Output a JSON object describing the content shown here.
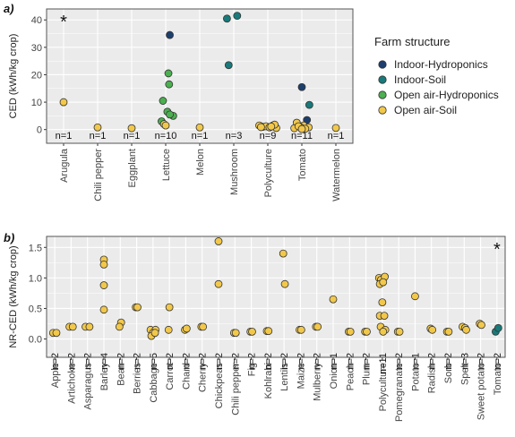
{
  "colors": {
    "Indoor-Hydroponics": "#1d3f6e",
    "Indoor-Soil": "#187a7a",
    "Open air-Hydroponics": "#4caf50",
    "Open air-Soil": "#f2c84b",
    "panel_bg": "#ebebeb",
    "grid": "#ffffff",
    "point_stroke": "#333333"
  },
  "legend": {
    "title": "Farm structure",
    "items": [
      "Indoor-Hydroponics",
      "Indoor-Soil",
      "Open air-Hydroponics",
      "Open air-Soil"
    ]
  },
  "chart_data": [
    {
      "panel_label": "a)",
      "type": "scatter",
      "ylabel": "CED (kWh/kg crop)",
      "ylim": [
        -5,
        44
      ],
      "yticks": [
        0,
        10,
        20,
        30,
        40
      ],
      "annotation": "*",
      "annotation_category": "Arugula",
      "categories": [
        "Arugula",
        "Chili pepper",
        "Eggplant",
        "Lettuce",
        "Melon",
        "Mushroom",
        "Polyculture",
        "Tomato",
        "Watermelon"
      ],
      "n_labels": [
        "n=1",
        "n=1",
        "n=1",
        "n=10",
        "n=1",
        "n=3",
        "n=9",
        "n=11",
        "n=1"
      ],
      "points": [
        {
          "category": "Arugula",
          "structure": "Open air-Soil",
          "y": 10.0,
          "jitter": 0.0
        },
        {
          "category": "Chili pepper",
          "structure": "Open air-Soil",
          "y": 0.8,
          "jitter": 0.0
        },
        {
          "category": "Eggplant",
          "structure": "Open air-Soil",
          "y": 0.5,
          "jitter": 0.0
        },
        {
          "category": "Lettuce",
          "structure": "Indoor-Hydroponics",
          "y": 34.5,
          "jitter": 0.12
        },
        {
          "category": "Lettuce",
          "structure": "Open air-Hydroponics",
          "y": 20.5,
          "jitter": 0.08
        },
        {
          "category": "Lettuce",
          "structure": "Open air-Hydroponics",
          "y": 16.5,
          "jitter": 0.1
        },
        {
          "category": "Lettuce",
          "structure": "Open air-Hydroponics",
          "y": 10.5,
          "jitter": -0.08
        },
        {
          "category": "Lettuce",
          "structure": "Open air-Hydroponics",
          "y": 6.5,
          "jitter": 0.05
        },
        {
          "category": "Lettuce",
          "structure": "Open air-Hydroponics",
          "y": 5.0,
          "jitter": 0.22
        },
        {
          "category": "Lettuce",
          "structure": "Open air-Hydroponics",
          "y": 5.5,
          "jitter": 0.12
        },
        {
          "category": "Lettuce",
          "structure": "Open air-Hydroponics",
          "y": 3.0,
          "jitter": -0.12
        },
        {
          "category": "Lettuce",
          "structure": "Open air-Soil",
          "y": 2.0,
          "jitter": -0.05
        },
        {
          "category": "Lettuce",
          "structure": "Open air-Soil",
          "y": 1.5,
          "jitter": 0.0
        },
        {
          "category": "Melon",
          "structure": "Open air-Soil",
          "y": 0.8,
          "jitter": 0.0
        },
        {
          "category": "Mushroom",
          "structure": "Indoor-Soil",
          "y": 40.5,
          "jitter": -0.2
        },
        {
          "category": "Mushroom",
          "structure": "Indoor-Soil",
          "y": 41.5,
          "jitter": 0.1
        },
        {
          "category": "Mushroom",
          "structure": "Indoor-Soil",
          "y": 23.5,
          "jitter": -0.15
        },
        {
          "category": "Polyculture",
          "structure": "Open air-Soil",
          "y": 1.5,
          "jitter": -0.25
        },
        {
          "category": "Polyculture",
          "structure": "Open air-Soil",
          "y": 1.0,
          "jitter": -0.15
        },
        {
          "category": "Polyculture",
          "structure": "Open air-Soil",
          "y": 1.2,
          "jitter": -0.05
        },
        {
          "category": "Polyculture",
          "structure": "Open air-Soil",
          "y": 0.8,
          "jitter": 0.05
        },
        {
          "category": "Polyculture",
          "structure": "Open air-Soil",
          "y": 1.5,
          "jitter": 0.15
        },
        {
          "category": "Polyculture",
          "structure": "Open air-Soil",
          "y": 0.6,
          "jitter": 0.25
        },
        {
          "category": "Polyculture",
          "structure": "Open air-Soil",
          "y": 1.8,
          "jitter": 0.2
        },
        {
          "category": "Polyculture",
          "structure": "Open air-Soil",
          "y": 0.9,
          "jitter": -0.2
        },
        {
          "category": "Polyculture",
          "structure": "Open air-Soil",
          "y": 1.1,
          "jitter": 0.1
        },
        {
          "category": "Tomato",
          "structure": "Indoor-Hydroponics",
          "y": 15.5,
          "jitter": 0.0
        },
        {
          "category": "Tomato",
          "structure": "Indoor-Soil",
          "y": 9.0,
          "jitter": 0.22
        },
        {
          "category": "Tomato",
          "structure": "Indoor-Hydroponics",
          "y": 3.5,
          "jitter": 0.15
        },
        {
          "category": "Tomato",
          "structure": "Open air-Soil",
          "y": 2.5,
          "jitter": -0.15
        },
        {
          "category": "Tomato",
          "structure": "Open air-Soil",
          "y": 1.5,
          "jitter": 0.05
        },
        {
          "category": "Tomato",
          "structure": "Open air-Soil",
          "y": 1.0,
          "jitter": -0.05
        },
        {
          "category": "Tomato",
          "structure": "Open air-Soil",
          "y": 0.8,
          "jitter": 0.2
        },
        {
          "category": "Tomato",
          "structure": "Open air-Soil",
          "y": 0.5,
          "jitter": -0.22
        },
        {
          "category": "Tomato",
          "structure": "Open air-Soil",
          "y": 0.3,
          "jitter": 0.1
        },
        {
          "category": "Tomato",
          "structure": "Open air-Soil",
          "y": 1.2,
          "jitter": -0.1
        },
        {
          "category": "Tomato",
          "structure": "Open air-Soil",
          "y": 0.2,
          "jitter": 0.0
        },
        {
          "category": "Watermelon",
          "structure": "Open air-Soil",
          "y": 0.6,
          "jitter": 0.0
        }
      ]
    },
    {
      "panel_label": "b)",
      "type": "scatter",
      "ylabel": "NR-CED (kWh/kg crop)",
      "ylim": [
        -0.3,
        1.68
      ],
      "yticks": [
        0.0,
        0.5,
        1.0,
        1.5
      ],
      "yticklabels": [
        "0.0",
        "0.5",
        "1.0",
        "1.5"
      ],
      "annotation": "*",
      "annotation_category": "Tomato",
      "categories": [
        "Apple",
        "Artichoke",
        "Asparagus",
        "Barley",
        "Bean",
        "Berries",
        "Cabbage",
        "Carrot",
        "Chard",
        "Cherry",
        "Chickpeas",
        "Chili pepper",
        "Fig",
        "Kohlrabi",
        "Lentils",
        "Maize",
        "Mulberry",
        "Onion",
        "Peach",
        "Plum",
        "Polyculture",
        "Pomegranate",
        "Potato",
        "Radish",
        "Sorb",
        "Spelt",
        "Sweet potato",
        "Tomato"
      ],
      "n_labels": [
        "n=2",
        "n=2",
        "n=2",
        "n=4",
        "n=2",
        "n=2",
        "n=5",
        "n=2",
        "n=2",
        "n=2",
        "n=2",
        "n=2",
        "n=2",
        "n=2",
        "n=2",
        "n=2",
        "n=2",
        "n=1",
        "n=2",
        "n=2",
        "n=11",
        "n=2",
        "n=1",
        "n=2",
        "n=2",
        "n=3",
        "n=2",
        "n=2"
      ],
      "points": [
        {
          "category": "Apple",
          "structure": "Open air-Soil",
          "y": 0.1,
          "jitter": -0.1
        },
        {
          "category": "Apple",
          "structure": "Open air-Soil",
          "y": 0.1,
          "jitter": 0.1
        },
        {
          "category": "Artichoke",
          "structure": "Open air-Soil",
          "y": 0.2,
          "jitter": -0.1
        },
        {
          "category": "Artichoke",
          "structure": "Open air-Soil",
          "y": 0.2,
          "jitter": 0.1
        },
        {
          "category": "Asparagus",
          "structure": "Open air-Soil",
          "y": 0.2,
          "jitter": -0.12
        },
        {
          "category": "Asparagus",
          "structure": "Open air-Soil",
          "y": 0.2,
          "jitter": 0.12
        },
        {
          "category": "Barley",
          "structure": "Open air-Soil",
          "y": 1.3,
          "jitter": 0.0
        },
        {
          "category": "Barley",
          "structure": "Open air-Soil",
          "y": 1.22,
          "jitter": 0.0
        },
        {
          "category": "Barley",
          "structure": "Open air-Soil",
          "y": 0.88,
          "jitter": 0.0
        },
        {
          "category": "Barley",
          "structure": "Open air-Soil",
          "y": 0.48,
          "jitter": 0.0
        },
        {
          "category": "Bean",
          "structure": "Open air-Soil",
          "y": 0.27,
          "jitter": 0.05
        },
        {
          "category": "Bean",
          "structure": "Open air-Soil",
          "y": 0.2,
          "jitter": -0.05
        },
        {
          "category": "Berries",
          "structure": "Open air-Soil",
          "y": 0.52,
          "jitter": -0.05
        },
        {
          "category": "Berries",
          "structure": "Open air-Soil",
          "y": 0.52,
          "jitter": 0.05
        },
        {
          "category": "Cabbage",
          "structure": "Open air-Soil",
          "y": 0.15,
          "jitter": -0.15
        },
        {
          "category": "Cabbage",
          "structure": "Open air-Soil",
          "y": 0.15,
          "jitter": 0.15
        },
        {
          "category": "Cabbage",
          "structure": "Open air-Soil",
          "y": 0.1,
          "jitter": 0.0
        },
        {
          "category": "Cabbage",
          "structure": "Open air-Soil",
          "y": 0.05,
          "jitter": -0.1
        },
        {
          "category": "Cabbage",
          "structure": "Open air-Soil",
          "y": 0.1,
          "jitter": 0.12
        },
        {
          "category": "Carrot",
          "structure": "Open air-Soil",
          "y": 0.52,
          "jitter": 0.0
        },
        {
          "category": "Carrot",
          "structure": "Open air-Soil",
          "y": 0.15,
          "jitter": -0.05
        },
        {
          "category": "Chard",
          "structure": "Open air-Soil",
          "y": 0.15,
          "jitter": -0.05
        },
        {
          "category": "Chard",
          "structure": "Open air-Soil",
          "y": 0.17,
          "jitter": 0.05
        },
        {
          "category": "Cherry",
          "structure": "Open air-Soil",
          "y": 0.2,
          "jitter": -0.05
        },
        {
          "category": "Cherry",
          "structure": "Open air-Soil",
          "y": 0.2,
          "jitter": 0.05
        },
        {
          "category": "Chickpeas",
          "structure": "Open air-Soil",
          "y": 1.6,
          "jitter": 0.0
        },
        {
          "category": "Chickpeas",
          "structure": "Open air-Soil",
          "y": 0.9,
          "jitter": 0.0
        },
        {
          "category": "Chili pepper",
          "structure": "Open air-Soil",
          "y": 0.1,
          "jitter": -0.05
        },
        {
          "category": "Chili pepper",
          "structure": "Open air-Soil",
          "y": 0.1,
          "jitter": 0.05
        },
        {
          "category": "Fig",
          "structure": "Open air-Soil",
          "y": 0.12,
          "jitter": -0.05
        },
        {
          "category": "Fig",
          "structure": "Open air-Soil",
          "y": 0.12,
          "jitter": 0.05
        },
        {
          "category": "Kohlrabi",
          "structure": "Open air-Soil",
          "y": 0.13,
          "jitter": -0.05
        },
        {
          "category": "Kohlrabi",
          "structure": "Open air-Soil",
          "y": 0.13,
          "jitter": 0.05
        },
        {
          "category": "Lentils",
          "structure": "Open air-Soil",
          "y": 1.4,
          "jitter": -0.05
        },
        {
          "category": "Lentils",
          "structure": "Open air-Soil",
          "y": 0.9,
          "jitter": 0.05
        },
        {
          "category": "Maize",
          "structure": "Open air-Soil",
          "y": 0.15,
          "jitter": -0.05
        },
        {
          "category": "Maize",
          "structure": "Open air-Soil",
          "y": 0.15,
          "jitter": 0.05
        },
        {
          "category": "Mulberry",
          "structure": "Open air-Soil",
          "y": 0.2,
          "jitter": -0.05
        },
        {
          "category": "Mulberry",
          "structure": "Open air-Soil",
          "y": 0.2,
          "jitter": 0.05
        },
        {
          "category": "Onion",
          "structure": "Open air-Soil",
          "y": 0.65,
          "jitter": 0.0
        },
        {
          "category": "Peach",
          "structure": "Open air-Soil",
          "y": 0.12,
          "jitter": -0.05
        },
        {
          "category": "Peach",
          "structure": "Open air-Soil",
          "y": 0.12,
          "jitter": 0.05
        },
        {
          "category": "Plum",
          "structure": "Open air-Soil",
          "y": 0.12,
          "jitter": -0.05
        },
        {
          "category": "Plum",
          "structure": "Open air-Soil",
          "y": 0.12,
          "jitter": 0.05
        },
        {
          "category": "Polyculture",
          "structure": "Open air-Soil",
          "y": 1.0,
          "jitter": -0.2
        },
        {
          "category": "Polyculture",
          "structure": "Open air-Soil",
          "y": 0.97,
          "jitter": -0.08
        },
        {
          "category": "Polyculture",
          "structure": "Open air-Soil",
          "y": 1.02,
          "jitter": 0.15
        },
        {
          "category": "Polyculture",
          "structure": "Open air-Soil",
          "y": 0.9,
          "jitter": -0.15
        },
        {
          "category": "Polyculture",
          "structure": "Open air-Soil",
          "y": 0.93,
          "jitter": 0.05
        },
        {
          "category": "Polyculture",
          "structure": "Open air-Soil",
          "y": 0.6,
          "jitter": 0.0
        },
        {
          "category": "Polyculture",
          "structure": "Open air-Soil",
          "y": 0.38,
          "jitter": -0.15
        },
        {
          "category": "Polyculture",
          "structure": "Open air-Soil",
          "y": 0.38,
          "jitter": 0.12
        },
        {
          "category": "Polyculture",
          "structure": "Open air-Soil",
          "y": 0.2,
          "jitter": -0.1
        },
        {
          "category": "Polyculture",
          "structure": "Open air-Soil",
          "y": 0.15,
          "jitter": 0.18
        },
        {
          "category": "Polyculture",
          "structure": "Open air-Soil",
          "y": 0.12,
          "jitter": 0.05
        },
        {
          "category": "Pomegranate",
          "structure": "Open air-Soil",
          "y": 0.12,
          "jitter": -0.05
        },
        {
          "category": "Pomegranate",
          "structure": "Open air-Soil",
          "y": 0.12,
          "jitter": 0.05
        },
        {
          "category": "Potato",
          "structure": "Open air-Soil",
          "y": 0.7,
          "jitter": 0.0
        },
        {
          "category": "Radish",
          "structure": "Open air-Soil",
          "y": 0.17,
          "jitter": -0.05
        },
        {
          "category": "Radish",
          "structure": "Open air-Soil",
          "y": 0.15,
          "jitter": 0.05
        },
        {
          "category": "Sorb",
          "structure": "Open air-Soil",
          "y": 0.12,
          "jitter": -0.05
        },
        {
          "category": "Sorb",
          "structure": "Open air-Soil",
          "y": 0.12,
          "jitter": 0.05
        },
        {
          "category": "Spelt",
          "structure": "Open air-Soil",
          "y": 0.2,
          "jitter": -0.1
        },
        {
          "category": "Spelt",
          "structure": "Open air-Soil",
          "y": 0.18,
          "jitter": 0.05
        },
        {
          "category": "Spelt",
          "structure": "Open air-Soil",
          "y": 0.15,
          "jitter": 0.12
        },
        {
          "category": "Sweet potato",
          "structure": "Open air-Soil",
          "y": 0.25,
          "jitter": -0.05
        },
        {
          "category": "Sweet potato",
          "structure": "Open air-Soil",
          "y": 0.23,
          "jitter": 0.05
        },
        {
          "category": "Tomato",
          "structure": "Indoor-Soil",
          "y": 0.12,
          "jitter": -0.08
        },
        {
          "category": "Tomato",
          "structure": "Indoor-Soil",
          "y": 0.18,
          "jitter": 0.08
        }
      ]
    }
  ]
}
